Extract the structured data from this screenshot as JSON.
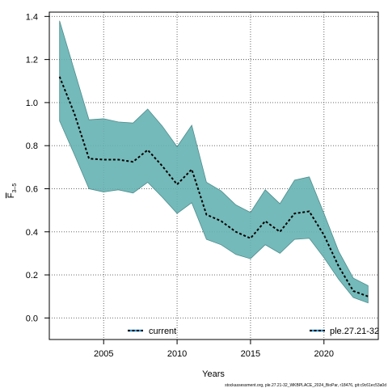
{
  "chart_data": {
    "type": "area",
    "xlabel": "Years",
    "ylabel_main": "F",
    "ylabel_sub": "3–5",
    "ylim": [
      -0.1,
      1.42
    ],
    "xlim": [
      2001.3,
      2023.7
    ],
    "xticks": [
      2005,
      2010,
      2015,
      2020
    ],
    "yticks": [
      0.0,
      0.2,
      0.4,
      0.6,
      0.8,
      1.0,
      1.2,
      1.4
    ],
    "grid": true,
    "x": [
      2002,
      2003,
      2004,
      2005,
      2006,
      2007,
      2008,
      2009,
      2010,
      2011,
      2012,
      2013,
      2014,
      2015,
      2016,
      2017,
      2018,
      2019,
      2020,
      2021,
      2022,
      2023
    ],
    "series": [
      {
        "name": "ple.27.21-32",
        "median": [
          1.12,
          0.95,
          0.74,
          0.735,
          0.735,
          0.725,
          0.78,
          0.705,
          0.62,
          0.69,
          0.48,
          0.45,
          0.4,
          0.37,
          0.45,
          0.4,
          0.485,
          0.495,
          0.385,
          0.24,
          0.125,
          0.1
        ],
        "upper": [
          1.38,
          1.15,
          0.92,
          0.925,
          0.91,
          0.905,
          0.97,
          0.89,
          0.795,
          0.895,
          0.63,
          0.59,
          0.525,
          0.49,
          0.595,
          0.53,
          0.64,
          0.655,
          0.485,
          0.31,
          0.185,
          0.15
        ],
        "lower": [
          0.915,
          0.76,
          0.6,
          0.585,
          0.595,
          0.58,
          0.63,
          0.56,
          0.485,
          0.535,
          0.365,
          0.34,
          0.295,
          0.275,
          0.34,
          0.3,
          0.365,
          0.37,
          0.28,
          0.18,
          0.095,
          0.07
        ]
      }
    ],
    "legend": [
      {
        "label": "current",
        "position": "bottom-center"
      },
      {
        "label": "ple.27.21-32",
        "position": "bottom-right"
      }
    ],
    "colors": {
      "band": "#66b2b2",
      "band_edge": "#4d8c8c",
      "line": "#000000",
      "legend_line": "#3a9bd8"
    }
  },
  "footnote": "stockassessment.org, ple.27.21-32_WKBPLACE_2024_BioPar, r18476, git:c9c61ec53a0d"
}
